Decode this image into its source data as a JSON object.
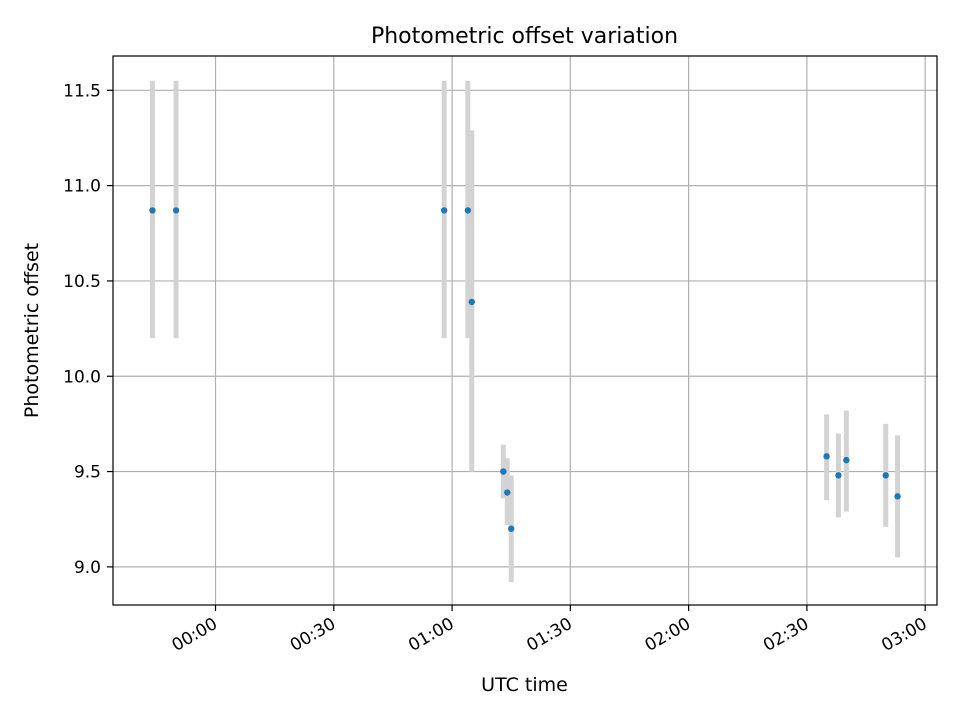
{
  "chart_data": {
    "type": "scatter",
    "title": "Photometric offset variation",
    "xlabel": "UTC time",
    "ylabel": "Photometric offset",
    "x_axis_kind": "time",
    "xlim": [
      "-00:26",
      "03:03"
    ],
    "ylim": [
      8.8,
      11.68
    ],
    "xticks": [
      "00:00",
      "00:30",
      "01:00",
      "01:30",
      "02:00",
      "02:30",
      "03:00"
    ],
    "yticks": [
      9.0,
      9.5,
      10.0,
      10.5,
      11.0,
      11.5
    ],
    "grid": true,
    "marker_color": "#1f77b4",
    "errorbar_color": "#d3d3d3",
    "series": [
      {
        "points": [
          {
            "x": "-00:16",
            "y": 10.87,
            "ylow": 10.2,
            "yhigh": 11.55
          },
          {
            "x": "-00:10",
            "y": 10.87,
            "ylow": 10.2,
            "yhigh": 11.55
          },
          {
            "x": "00:58",
            "y": 10.87,
            "ylow": 10.2,
            "yhigh": 11.55
          },
          {
            "x": "01:04",
            "y": 10.87,
            "ylow": 10.2,
            "yhigh": 11.55
          },
          {
            "x": "01:05",
            "y": 10.39,
            "ylow": 9.5,
            "yhigh": 11.29
          },
          {
            "x": "01:13",
            "y": 9.5,
            "ylow": 9.36,
            "yhigh": 9.64
          },
          {
            "x": "01:14",
            "y": 9.39,
            "ylow": 9.22,
            "yhigh": 9.57
          },
          {
            "x": "01:15",
            "y": 9.2,
            "ylow": 8.92,
            "yhigh": 9.48
          },
          {
            "x": "02:35",
            "y": 9.58,
            "ylow": 9.35,
            "yhigh": 9.8
          },
          {
            "x": "02:38",
            "y": 9.48,
            "ylow": 9.26,
            "yhigh": 9.7
          },
          {
            "x": "02:40",
            "y": 9.56,
            "ylow": 9.29,
            "yhigh": 9.82
          },
          {
            "x": "02:50",
            "y": 9.48,
            "ylow": 9.21,
            "yhigh": 9.75
          },
          {
            "x": "02:53",
            "y": 9.37,
            "ylow": 9.05,
            "yhigh": 9.69
          }
        ]
      }
    ]
  }
}
